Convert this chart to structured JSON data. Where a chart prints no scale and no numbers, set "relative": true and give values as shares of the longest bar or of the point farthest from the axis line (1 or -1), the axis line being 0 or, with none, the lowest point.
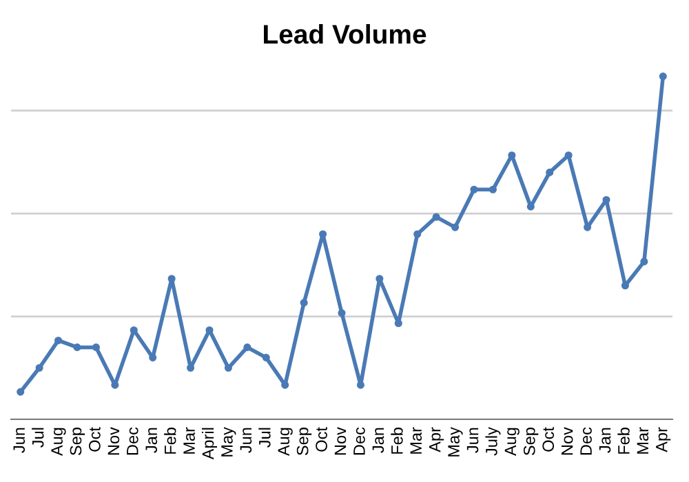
{
  "chart_data": {
    "type": "line",
    "title": "Lead Volume",
    "relative": true,
    "grid": "y",
    "marker": "circle",
    "line_style": "solid",
    "categories": [
      "Jun",
      "Jul",
      "Aug",
      "Sep",
      "Oct",
      "Nov",
      "Dec",
      "Jan",
      "Feb",
      "Mar",
      "April",
      "May",
      "Jun",
      "Jul",
      "Aug",
      "Sep",
      "Oct",
      "Nov",
      "Dec",
      "Jan",
      "Feb",
      "Mar",
      "Apr",
      "May",
      "Jun",
      "July",
      "Aug",
      "Sep",
      "Oct",
      "Nov",
      "Dec",
      "Jan",
      "Feb",
      "Mar",
      "Apr"
    ],
    "series": [
      {
        "color": "#4a7ab5",
        "values": [
          0.08,
          0.15,
          0.23,
          0.21,
          0.21,
          0.1,
          0.26,
          0.18,
          0.41,
          0.15,
          0.26,
          0.15,
          0.21,
          0.18,
          0.1,
          0.34,
          0.54,
          0.31,
          0.1,
          0.41,
          0.28,
          0.54,
          0.59,
          0.56,
          0.67,
          0.67,
          0.77,
          0.62,
          0.72,
          0.77,
          0.56,
          0.64,
          0.39,
          0.46,
          1
        ]
      }
    ]
  }
}
